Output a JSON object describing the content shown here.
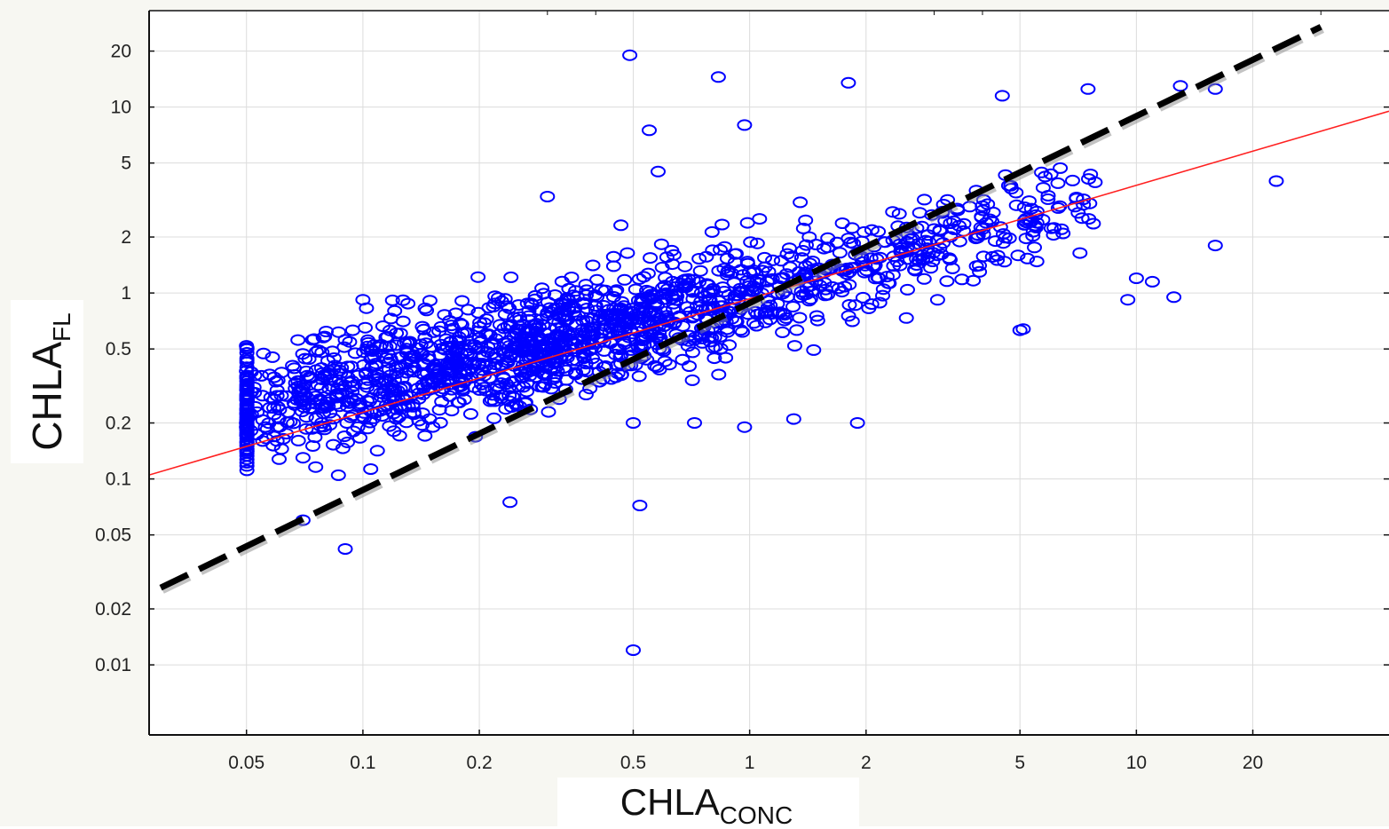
{
  "chart_data": {
    "type": "scatter",
    "title": "",
    "xlabel": "CHLA",
    "xlabel_sub": "CONC",
    "ylabel": "CHLA",
    "ylabel_sub": "FL",
    "x_scale": "log",
    "y_scale": "log",
    "xlim": [
      0.028,
      45
    ],
    "ylim": [
      0.0042,
      33
    ],
    "x_ticks": [
      "0.05",
      "0.1",
      "0.2",
      "0.5",
      "1",
      "2",
      "5",
      "10",
      "20"
    ],
    "y_ticks": [
      "0.01",
      "0.02",
      "0.05",
      "0.1",
      "0.2",
      "0.5",
      "1",
      "2",
      "5",
      "10",
      "20"
    ],
    "grid": true,
    "marker": "open circle",
    "colors": {
      "points": "#0000ff",
      "regression": "#ff2020",
      "identity": "#000000"
    },
    "lines": [
      {
        "style": "solid",
        "color": "#ff2020",
        "x": [
          0.028,
          45
        ],
        "y": [
          0.105,
          9.5
        ]
      },
      {
        "style": "dashed",
        "color": "#000000",
        "x": [
          0.03,
          30
        ],
        "y": [
          0.026,
          27
        ]
      }
    ],
    "highlighted_points": [
      {
        "x": 0.05,
        "y": 0.52
      },
      {
        "x": 0.05,
        "y": 0.38
      },
      {
        "x": 0.05,
        "y": 0.2
      },
      {
        "x": 0.05,
        "y": 0.19
      },
      {
        "x": 0.06,
        "y": 0.3
      },
      {
        "x": 0.06,
        "y": 0.28
      },
      {
        "x": 0.06,
        "y": 0.19
      },
      {
        "x": 0.06,
        "y": 0.16
      },
      {
        "x": 0.07,
        "y": 0.31
      },
      {
        "x": 0.07,
        "y": 0.13
      },
      {
        "x": 0.07,
        "y": 0.06
      },
      {
        "x": 0.09,
        "y": 0.56
      },
      {
        "x": 0.09,
        "y": 0.042
      },
      {
        "x": 0.1,
        "y": 0.92
      },
      {
        "x": 0.49,
        "y": 19
      },
      {
        "x": 0.83,
        "y": 14.5
      },
      {
        "x": 1.8,
        "y": 13.5
      },
      {
        "x": 0.5,
        "y": 0.012
      },
      {
        "x": 0.24,
        "y": 0.075
      },
      {
        "x": 0.52,
        "y": 0.072
      },
      {
        "x": 23,
        "y": 4
      },
      {
        "x": 16,
        "y": 1.8
      },
      {
        "x": 10,
        "y": 1.2
      },
      {
        "x": 11,
        "y": 1.15
      },
      {
        "x": 9.5,
        "y": 0.92
      },
      {
        "x": 12.5,
        "y": 0.95
      },
      {
        "x": 13,
        "y": 13
      },
      {
        "x": 16,
        "y": 12.5
      },
      {
        "x": 4.5,
        "y": 11.5
      },
      {
        "x": 7.5,
        "y": 12.5
      },
      {
        "x": 0.3,
        "y": 3.3
      },
      {
        "x": 0.55,
        "y": 7.5
      },
      {
        "x": 0.97,
        "y": 8
      },
      {
        "x": 0.58,
        "y": 4.5
      },
      {
        "x": 1.9,
        "y": 0.2
      },
      {
        "x": 1.3,
        "y": 0.21
      },
      {
        "x": 0.97,
        "y": 0.19
      },
      {
        "x": 0.72,
        "y": 0.2
      },
      {
        "x": 0.5,
        "y": 0.2
      },
      {
        "x": 5,
        "y": 0.63
      },
      {
        "x": 5.1,
        "y": 0.64
      }
    ]
  }
}
